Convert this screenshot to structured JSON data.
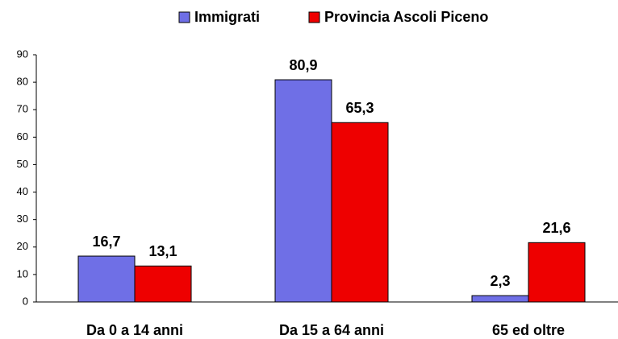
{
  "chart_data": {
    "type": "bar",
    "categories": [
      "Da 0 a 14 anni",
      "Da 15 a 64 anni",
      "65 ed oltre"
    ],
    "series": [
      {
        "name": "Immigrati",
        "color": "#6f6fe6",
        "values": [
          16.7,
          80.9,
          2.3
        ],
        "value_labels": [
          "16,7",
          "80,9",
          "2,3"
        ]
      },
      {
        "name": "Provincia Ascoli Piceno",
        "color": "#ee0000",
        "values": [
          13.1,
          65.3,
          21.6
        ],
        "value_labels": [
          "13,1",
          "65,3",
          "21,6"
        ]
      }
    ],
    "ylim": [
      0,
      90
    ],
    "yticks": [
      0,
      10,
      20,
      30,
      40,
      50,
      60,
      70,
      80,
      90
    ],
    "grid": false,
    "legend": "top"
  }
}
